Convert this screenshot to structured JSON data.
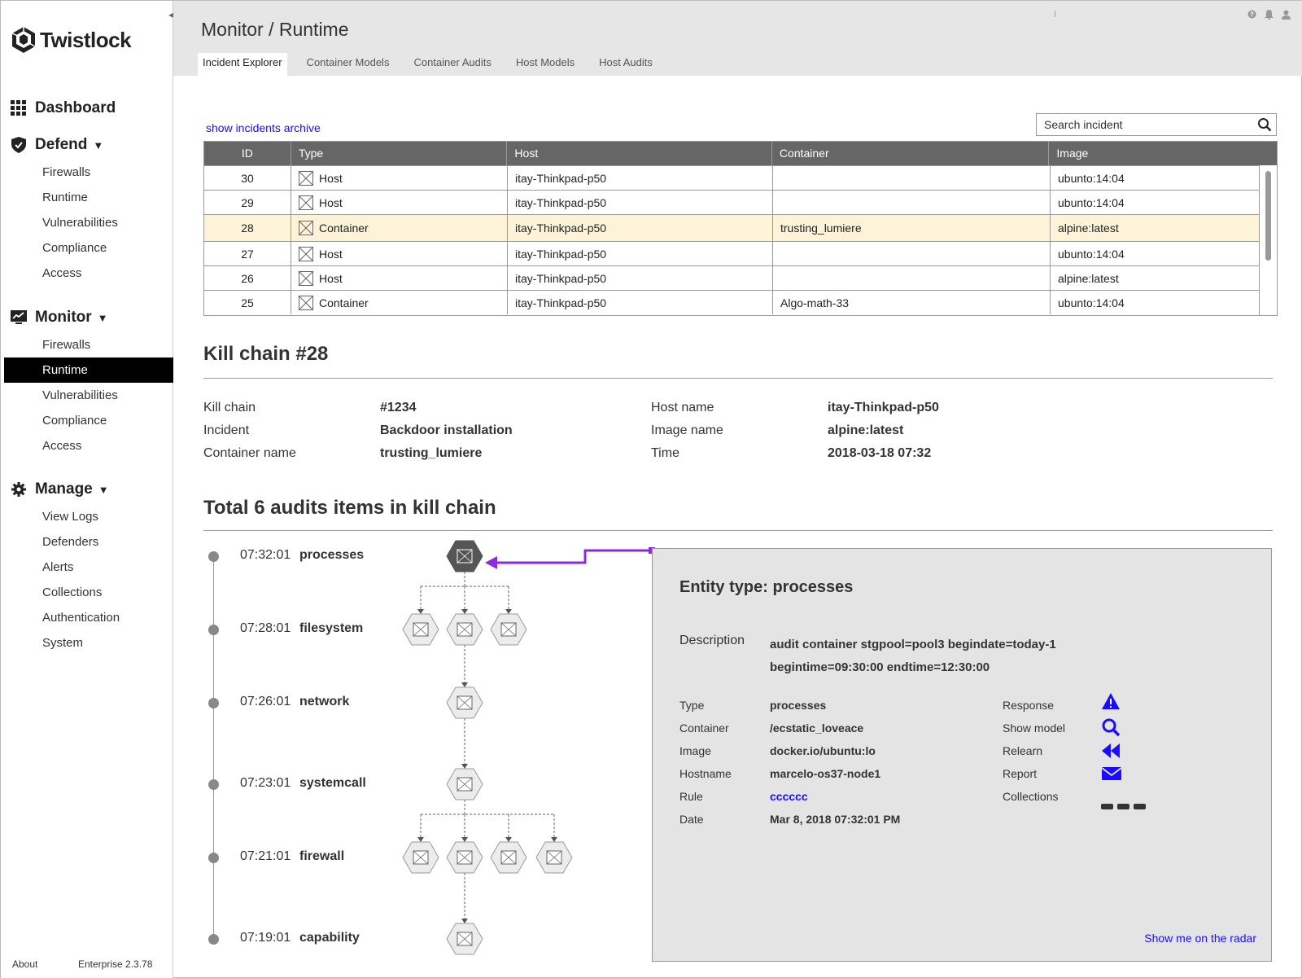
{
  "app": {
    "name": "Twistlock"
  },
  "sidebar": {
    "sections": [
      {
        "label": "Dashboard",
        "icon": "grid-icon",
        "items": []
      },
      {
        "label": "Defend",
        "icon": "shield-icon",
        "items": [
          "Firewalls",
          "Runtime",
          "Vulnerabilities",
          "Compliance",
          "Access"
        ]
      },
      {
        "label": "Monitor",
        "icon": "monitor-icon",
        "items": [
          "Firewalls",
          "Runtime",
          "Vulnerabilities",
          "Compliance",
          "Access"
        ],
        "active_item": "Runtime"
      },
      {
        "label": "Manage",
        "icon": "gear-icon",
        "items": [
          "View Logs",
          "Defenders",
          "Alerts",
          "Collections",
          "Authentication",
          "System"
        ]
      }
    ],
    "footer": {
      "about": "About",
      "version": "Enterprise 2.3.78"
    }
  },
  "header": {
    "title": "Monitor / Runtime",
    "tabs": [
      "Incident Explorer",
      "Container Models",
      "Container Audits",
      "Host Models",
      "Host Audits"
    ],
    "active_tab": "Incident Explorer"
  },
  "incidents": {
    "archive_link": "show incidents archive",
    "search_placeholder": "Search incident",
    "columns": [
      "ID",
      "Type",
      "Host",
      "Container",
      "Image"
    ],
    "rows": [
      {
        "id": "30",
        "type": "Host",
        "host": "itay-Thinkpad-p50",
        "container": "",
        "image": "ubunto:14:04"
      },
      {
        "id": "29",
        "type": "Host",
        "host": "itay-Thinkpad-p50",
        "container": "",
        "image": "ubunto:14:04"
      },
      {
        "id": "28",
        "type": "Container",
        "host": "itay-Thinkpad-p50",
        "container": "trusting_lumiere",
        "image": "alpine:latest",
        "selected": true
      },
      {
        "id": "27",
        "type": "Host",
        "host": "itay-Thinkpad-p50",
        "container": "",
        "image": "ubunto:14:04"
      },
      {
        "id": "26",
        "type": "Host",
        "host": "itay-Thinkpad-p50",
        "container": "",
        "image": "alpine:latest"
      },
      {
        "id": "25",
        "type": "Container",
        "host": "itay-Thinkpad-p50",
        "container": "Algo-math-33",
        "image": "ubunto:14:04"
      }
    ]
  },
  "kill_chain": {
    "title": "Kill chain #28",
    "fields": {
      "kill_chain_label": "Kill chain",
      "kill_chain_value": "#1234",
      "incident_label": "Incident",
      "incident_value": "Backdoor installation",
      "container_label": "Container name",
      "container_value": "trusting_lumiere",
      "host_label": "Host name",
      "host_value": "itay-Thinkpad-p50",
      "image_label": "Image name",
      "image_value": "alpine:latest",
      "time_label": "Time",
      "time_value": "2018-03-18 07:32"
    }
  },
  "audits": {
    "title": "Total 6 audits items in kill chain",
    "timeline": [
      {
        "time": "07:32:01",
        "name": "processes",
        "nodes": 1
      },
      {
        "time": "07:28:01",
        "name": "filesystem",
        "nodes": 3
      },
      {
        "time": "07:26:01",
        "name": "network",
        "nodes": 1
      },
      {
        "time": "07:23:01",
        "name": "systemcall",
        "nodes": 1
      },
      {
        "time": "07:21:01",
        "name": "firewall",
        "nodes": 4
      },
      {
        "time": "07:19:01",
        "name": "capability",
        "nodes": 1
      }
    ]
  },
  "detail": {
    "title": "Entity type: processes",
    "description_label": "Description",
    "description_line1": "audit container stgpool=pool3 begindate=today-1",
    "description_line2": "begintime=09:30:00 endtime=12:30:00",
    "fields": [
      {
        "label": "Type",
        "value": "processes"
      },
      {
        "label": "Container",
        "value": "/ecstatic_loveace"
      },
      {
        "label": "Image",
        "value": "docker.io/ubuntu:lo"
      },
      {
        "label": "Hostname",
        "value": "marcelo-os37-node1"
      },
      {
        "label": "Rule",
        "value": "cccccc",
        "link": true
      },
      {
        "label": "Date",
        "value": "Mar 8, 2018 07:32:01 PM"
      }
    ],
    "actions": [
      {
        "label": "Response",
        "icon": "warning-icon"
      },
      {
        "label": "Show model",
        "icon": "search-icon"
      },
      {
        "label": "Relearn",
        "icon": "rewind-icon"
      },
      {
        "label": "Report",
        "icon": "envelope-icon"
      },
      {
        "label": "Collections",
        "icon": "dashes-icon"
      }
    ],
    "radar_link": "Show me on the radar"
  },
  "colors": {
    "accent_link": "#1a0dff",
    "connector": "#8a2be2",
    "table_header": "#666666",
    "selected_row": "#fdf3d8",
    "active_nav": "#000000",
    "action_icon": "#1a0dff"
  }
}
